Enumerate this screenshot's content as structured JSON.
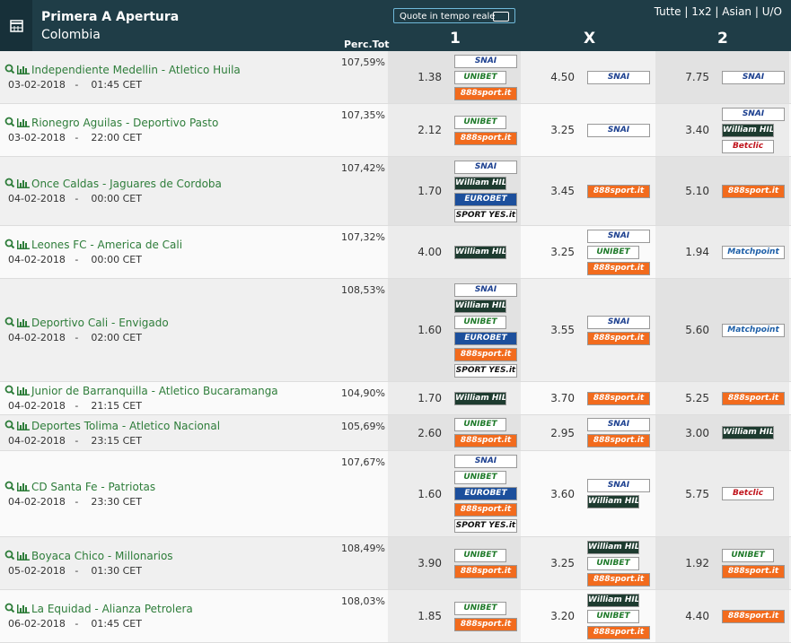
{
  "header": {
    "title": "Primera A Apertura",
    "country": "Colombia",
    "live_toggle": "Quote in tempo reale",
    "filters": [
      "Tutte",
      "1x2",
      "Asian",
      "U/O"
    ],
    "columns": {
      "perc": "Perc.Tot",
      "one": "1",
      "x": "X",
      "two": "2"
    }
  },
  "bookmaker_styles": {
    "SNAI": {
      "bg": "#ffffff",
      "fg": "#1b3f8f",
      "flag": false
    },
    "UNIBET": {
      "bg": "#ffffff",
      "fg": "#1f7a2a",
      "flag": true
    },
    "888sport.it": {
      "bg": "#f26b1d",
      "fg": "#ffffff",
      "flag": false
    },
    "William HILL": {
      "bg": "#1d3b2f",
      "fg": "#ffffff",
      "flag": true
    },
    "EUROBET": {
      "bg": "#1c4f9c",
      "fg": "#ffffff",
      "flag": false
    },
    "SPORT YES.it": {
      "bg": "#ffffff",
      "fg": "#111111",
      "flag": false
    },
    "Betclic": {
      "bg": "#ffffff",
      "fg": "#c0141c",
      "flag": true
    },
    "Matchpoint": {
      "bg": "#ffffff",
      "fg": "#1d5fa8",
      "flag": false
    }
  },
  "rows": [
    {
      "home": "Independiente Medellin",
      "away": "Atletico Huila",
      "date": "03-02-2018",
      "time": "01:45 CET",
      "perc": "107,59%",
      "odds": [
        {
          "value": "1.38",
          "books": [
            "SNAI",
            "UNIBET",
            "888sport.it"
          ]
        },
        {
          "value": "4.50",
          "books": [
            "SNAI"
          ]
        },
        {
          "value": "7.75",
          "books": [
            "SNAI"
          ]
        }
      ]
    },
    {
      "home": "Rionegro Aguilas",
      "away": "Deportivo Pasto",
      "date": "03-02-2018",
      "time": "22:00 CET",
      "perc": "107,35%",
      "odds": [
        {
          "value": "2.12",
          "books": [
            "UNIBET",
            "888sport.it"
          ]
        },
        {
          "value": "3.25",
          "books": [
            "SNAI"
          ]
        },
        {
          "value": "3.40",
          "books": [
            "SNAI",
            "William HILL",
            "Betclic"
          ]
        }
      ]
    },
    {
      "home": "Once Caldas",
      "away": "Jaguares de Cordoba",
      "date": "04-02-2018",
      "time": "00:00 CET",
      "perc": "107,42%",
      "odds": [
        {
          "value": "1.70",
          "books": [
            "SNAI",
            "William HILL",
            "EUROBET",
            "SPORT YES.it"
          ]
        },
        {
          "value": "3.45",
          "books": [
            "888sport.it"
          ]
        },
        {
          "value": "5.10",
          "books": [
            "888sport.it"
          ]
        }
      ]
    },
    {
      "home": "Leones FC",
      "away": "America de Cali",
      "date": "04-02-2018",
      "time": "00:00 CET",
      "perc": "107,32%",
      "odds": [
        {
          "value": "4.00",
          "books": [
            "William HILL"
          ]
        },
        {
          "value": "3.25",
          "books": [
            "SNAI",
            "UNIBET",
            "888sport.it"
          ]
        },
        {
          "value": "1.94",
          "books": [
            "Matchpoint"
          ]
        }
      ]
    },
    {
      "home": "Deportivo Cali",
      "away": "Envigado",
      "date": "04-02-2018",
      "time": "02:00 CET",
      "perc": "108,53%",
      "odds": [
        {
          "value": "1.60",
          "books": [
            "SNAI",
            "William HILL",
            "UNIBET",
            "EUROBET",
            "888sport.it",
            "SPORT YES.it"
          ]
        },
        {
          "value": "3.55",
          "books": [
            "SNAI",
            "888sport.it"
          ]
        },
        {
          "value": "5.60",
          "books": [
            "Matchpoint"
          ]
        }
      ]
    },
    {
      "home": "Junior de Barranquilla",
      "away": "Atletico Bucaramanga",
      "date": "04-02-2018",
      "time": "21:15 CET",
      "perc": "104,90%",
      "odds": [
        {
          "value": "1.70",
          "books": [
            "William HILL"
          ]
        },
        {
          "value": "3.70",
          "books": [
            "888sport.it"
          ]
        },
        {
          "value": "5.25",
          "books": [
            "888sport.it"
          ]
        }
      ]
    },
    {
      "home": "Deportes Tolima",
      "away": "Atletico Nacional",
      "date": "04-02-2018",
      "time": "23:15 CET",
      "perc": "105,69%",
      "odds": [
        {
          "value": "2.60",
          "books": [
            "UNIBET",
            "888sport.it"
          ]
        },
        {
          "value": "2.95",
          "books": [
            "SNAI",
            "888sport.it"
          ]
        },
        {
          "value": "3.00",
          "books": [
            "William HILL"
          ]
        }
      ]
    },
    {
      "home": "CD Santa Fe",
      "away": "Patriotas",
      "date": "04-02-2018",
      "time": "23:30 CET",
      "perc": "107,67%",
      "odds": [
        {
          "value": "1.60",
          "books": [
            "SNAI",
            "UNIBET",
            "EUROBET",
            "888sport.it",
            "SPORT YES.it"
          ]
        },
        {
          "value": "3.60",
          "books": [
            "SNAI",
            "William HILL"
          ]
        },
        {
          "value": "5.75",
          "books": [
            "Betclic"
          ]
        }
      ]
    },
    {
      "home": "Boyaca Chico",
      "away": "Millonarios",
      "date": "05-02-2018",
      "time": "01:30 CET",
      "perc": "108,49%",
      "odds": [
        {
          "value": "3.90",
          "books": [
            "UNIBET",
            "888sport.it"
          ]
        },
        {
          "value": "3.25",
          "books": [
            "William HILL",
            "UNIBET",
            "888sport.it"
          ]
        },
        {
          "value": "1.92",
          "books": [
            "UNIBET",
            "888sport.it"
          ]
        }
      ]
    },
    {
      "home": "La Equidad",
      "away": "Alianza Petrolera",
      "date": "06-02-2018",
      "time": "01:45 CET",
      "perc": "108,03%",
      "odds": [
        {
          "value": "1.85",
          "books": [
            "UNIBET",
            "888sport.it"
          ]
        },
        {
          "value": "3.20",
          "books": [
            "William HILL",
            "UNIBET",
            "888sport.it"
          ]
        },
        {
          "value": "4.40",
          "books": [
            "888sport.it"
          ]
        }
      ]
    }
  ]
}
